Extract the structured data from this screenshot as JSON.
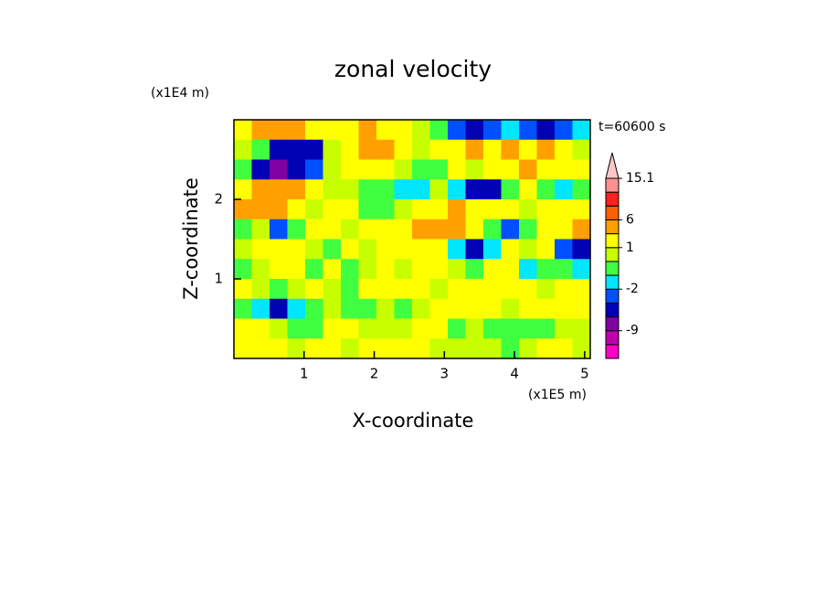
{
  "chart_data": {
    "type": "contour",
    "title": "zonal velocity",
    "xlabel": "X-coordinate",
    "ylabel": "Z-coordinate",
    "x_unit": "(x1E5 m)",
    "y_unit": "(x1E4 m)",
    "annotation": "t=60600 s",
    "xlim": [
      0,
      5.08
    ],
    "ylim": [
      0,
      3
    ],
    "xticks": [
      1,
      2,
      3,
      4,
      5
    ],
    "yticks": [
      1,
      2
    ],
    "z": [
      [
        1,
        3,
        4,
        3,
        2,
        1,
        1,
        3,
        2,
        1,
        0,
        -1,
        -3,
        -5,
        -4,
        -2,
        -3,
        -5,
        -4,
        -2
      ],
      [
        0,
        -1,
        -5,
        -6,
        -5,
        0,
        1,
        4,
        3,
        1,
        0,
        1,
        2,
        3,
        1,
        4,
        2,
        4,
        1,
        0
      ],
      [
        -1,
        -6,
        -7,
        -6,
        -4,
        0,
        1,
        2,
        1,
        0,
        -1,
        -1,
        1,
        0,
        1,
        2,
        3,
        2,
        2,
        1
      ],
      [
        2,
        4,
        4,
        3,
        1,
        0,
        0,
        -1,
        -1,
        -2,
        -2,
        0,
        -2,
        -6,
        -5,
        -1,
        1,
        -1,
        -2,
        -1
      ],
      [
        3,
        4,
        3,
        1,
        0,
        1,
        2,
        -1,
        -1,
        0,
        1,
        2,
        3,
        2,
        1,
        1,
        0,
        1,
        2,
        1
      ],
      [
        -1,
        0,
        -3,
        -1,
        2,
        1,
        0,
        2,
        1,
        2,
        3,
        4,
        3,
        2,
        -1,
        -3,
        -1,
        1,
        2,
        3
      ],
      [
        0,
        1,
        1,
        2,
        0,
        -1,
        1,
        0,
        2,
        1,
        1,
        2,
        -2,
        -5,
        -2,
        1,
        0,
        1,
        -4,
        -5
      ],
      [
        -1,
        0,
        2,
        1,
        -1,
        1,
        -1,
        0,
        1,
        0,
        1,
        1,
        0,
        -1,
        1,
        2,
        -2,
        -1,
        -1,
        -2
      ],
      [
        1,
        0,
        -1,
        0,
        1,
        0,
        -1,
        1,
        1,
        1,
        1,
        0,
        1,
        1,
        1,
        1,
        1,
        0,
        1,
        1
      ],
      [
        -1,
        -2,
        -5,
        -2,
        -1,
        0,
        -1,
        -1,
        0,
        -1,
        0,
        1,
        1,
        1,
        1,
        0,
        1,
        1,
        1,
        1
      ],
      [
        1,
        1,
        0,
        -1,
        -1,
        1,
        1,
        0,
        0,
        0,
        1,
        2,
        -1,
        0,
        -1,
        -1,
        -1,
        -1,
        0,
        0
      ],
      [
        1,
        1,
        1,
        0,
        1,
        1,
        0,
        1,
        1,
        1,
        1,
        0,
        0,
        0,
        0,
        -1,
        0,
        1,
        1,
        0
      ]
    ],
    "colorbar": {
      "levels": [
        -15,
        -12,
        -9,
        -6,
        -4,
        -2,
        -1,
        0,
        1,
        3,
        6,
        9,
        12,
        15.1
      ],
      "colors": [
        "#ff00c8",
        "#c000b0",
        "#8000a0",
        "#0000b4",
        "#0050ff",
        "#00e6ff",
        "#40ff40",
        "#c8ff00",
        "#ffff00",
        "#ffa000",
        "#ff6000",
        "#ff2020",
        "#ff9090"
      ],
      "extend_color": "#ffc8c8",
      "ticks": [
        15.1,
        6,
        1,
        -2,
        -9
      ]
    }
  }
}
